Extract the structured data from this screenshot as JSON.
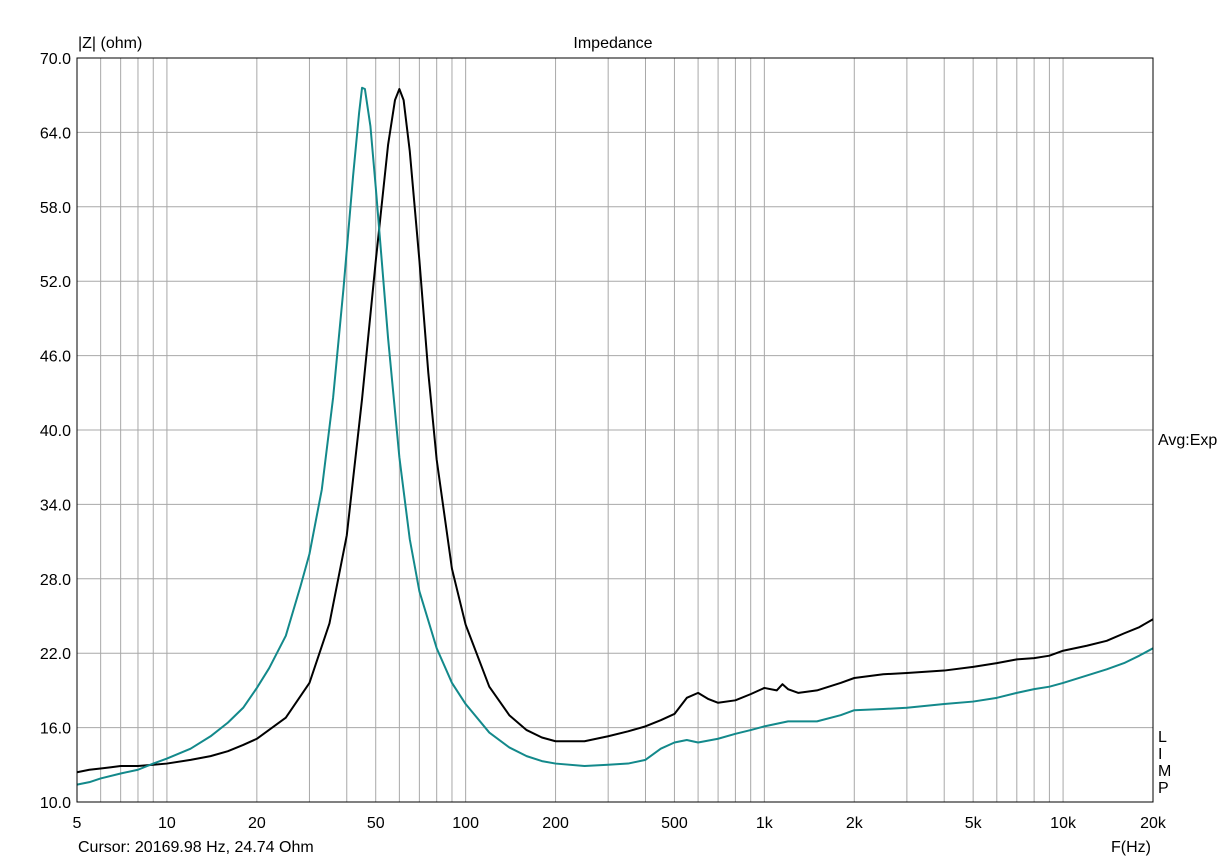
{
  "chart_data": {
    "type": "line",
    "title": "Impedance",
    "ylabel": "|Z| (ohm)",
    "xlabel": "F(Hz)",
    "x_scale": "log",
    "xlim": [
      5,
      20000
    ],
    "ylim": [
      10,
      70
    ],
    "grid": true,
    "y_ticks": [
      "70.0",
      "64.0",
      "58.0",
      "52.0",
      "46.0",
      "40.0",
      "34.0",
      "28.0",
      "22.0",
      "16.0",
      "10.0"
    ],
    "x_tick_labels": [
      {
        "value": 5,
        "label": "5"
      },
      {
        "value": 10,
        "label": "10"
      },
      {
        "value": 20,
        "label": "20"
      },
      {
        "value": 50,
        "label": "50"
      },
      {
        "value": 100,
        "label": "100"
      },
      {
        "value": 200,
        "label": "200"
      },
      {
        "value": 500,
        "label": "500"
      },
      {
        "value": 1000,
        "label": "1k"
      },
      {
        "value": 2000,
        "label": "2k"
      },
      {
        "value": 5000,
        "label": "5k"
      },
      {
        "value": 10000,
        "label": "10k"
      },
      {
        "value": 20000,
        "label": "20k"
      }
    ],
    "side_label": "Avg:Exp",
    "limp_letters": [
      "L",
      "I",
      "M",
      "P"
    ],
    "cursor_text": "Cursor: 20169.98 Hz, 24.74 Ohm",
    "series": [
      {
        "color": "#000000",
        "points": [
          [
            5,
            12.4
          ],
          [
            5.5,
            12.6
          ],
          [
            6,
            12.7
          ],
          [
            6.5,
            12.8
          ],
          [
            7,
            12.9
          ],
          [
            8,
            12.9
          ],
          [
            9,
            13.0
          ],
          [
            10,
            13.1
          ],
          [
            12,
            13.4
          ],
          [
            14,
            13.7
          ],
          [
            16,
            14.1
          ],
          [
            18,
            14.6
          ],
          [
            20,
            15.1
          ],
          [
            25,
            16.8
          ],
          [
            30,
            19.6
          ],
          [
            35,
            24.4
          ],
          [
            40,
            31.5
          ],
          [
            45,
            42.5
          ],
          [
            50,
            53.6
          ],
          [
            55,
            63.0
          ],
          [
            58,
            66.6
          ],
          [
            60,
            67.5
          ],
          [
            62,
            66.6
          ],
          [
            65,
            62.5
          ],
          [
            70,
            53.7
          ],
          [
            75,
            44.6
          ],
          [
            80,
            37.6
          ],
          [
            90,
            28.8
          ],
          [
            100,
            24.3
          ],
          [
            120,
            19.3
          ],
          [
            140,
            17.0
          ],
          [
            160,
            15.8
          ],
          [
            180,
            15.2
          ],
          [
            200,
            14.9
          ],
          [
            250,
            14.9
          ],
          [
            300,
            15.3
          ],
          [
            350,
            15.7
          ],
          [
            400,
            16.1
          ],
          [
            450,
            16.6
          ],
          [
            500,
            17.1
          ],
          [
            550,
            18.4
          ],
          [
            600,
            18.8
          ],
          [
            650,
            18.3
          ],
          [
            700,
            18.0
          ],
          [
            800,
            18.2
          ],
          [
            900,
            18.7
          ],
          [
            1000,
            19.2
          ],
          [
            1100,
            19.0
          ],
          [
            1150,
            19.5
          ],
          [
            1200,
            19.1
          ],
          [
            1300,
            18.8
          ],
          [
            1500,
            19.0
          ],
          [
            1800,
            19.6
          ],
          [
            2000,
            20.0
          ],
          [
            2500,
            20.3
          ],
          [
            3000,
            20.4
          ],
          [
            4000,
            20.6
          ],
          [
            5000,
            20.9
          ],
          [
            6000,
            21.2
          ],
          [
            7000,
            21.5
          ],
          [
            8000,
            21.6
          ],
          [
            9000,
            21.8
          ],
          [
            10000,
            22.2
          ],
          [
            12000,
            22.6
          ],
          [
            14000,
            23.0
          ],
          [
            16000,
            23.6
          ],
          [
            18000,
            24.1
          ],
          [
            20000,
            24.74
          ]
        ]
      },
      {
        "color": "#13898b",
        "points": [
          [
            5,
            11.4
          ],
          [
            5.5,
            11.6
          ],
          [
            6,
            11.9
          ],
          [
            7,
            12.3
          ],
          [
            8,
            12.6
          ],
          [
            9,
            13.1
          ],
          [
            10,
            13.5
          ],
          [
            12,
            14.3
          ],
          [
            14,
            15.3
          ],
          [
            16,
            16.4
          ],
          [
            18,
            17.6
          ],
          [
            20,
            19.2
          ],
          [
            22,
            20.8
          ],
          [
            25,
            23.4
          ],
          [
            28,
            27.4
          ],
          [
            30,
            30.0
          ],
          [
            33,
            35.2
          ],
          [
            36,
            42.6
          ],
          [
            39,
            51.4
          ],
          [
            42,
            60.5
          ],
          [
            44,
            65.6
          ],
          [
            45,
            67.6
          ],
          [
            46,
            67.5
          ],
          [
            48,
            64.5
          ],
          [
            50,
            59.6
          ],
          [
            55,
            47.4
          ],
          [
            60,
            37.8
          ],
          [
            65,
            31.2
          ],
          [
            70,
            27.0
          ],
          [
            80,
            22.4
          ],
          [
            90,
            19.6
          ],
          [
            100,
            17.9
          ],
          [
            120,
            15.6
          ],
          [
            140,
            14.4
          ],
          [
            160,
            13.7
          ],
          [
            180,
            13.3
          ],
          [
            200,
            13.1
          ],
          [
            250,
            12.9
          ],
          [
            300,
            13.0
          ],
          [
            350,
            13.1
          ],
          [
            400,
            13.4
          ],
          [
            450,
            14.3
          ],
          [
            500,
            14.8
          ],
          [
            550,
            15.0
          ],
          [
            600,
            14.8
          ],
          [
            700,
            15.1
          ],
          [
            800,
            15.5
          ],
          [
            900,
            15.8
          ],
          [
            1000,
            16.1
          ],
          [
            1200,
            16.5
          ],
          [
            1500,
            16.5
          ],
          [
            1800,
            17.0
          ],
          [
            2000,
            17.4
          ],
          [
            2500,
            17.5
          ],
          [
            3000,
            17.6
          ],
          [
            4000,
            17.9
          ],
          [
            5000,
            18.1
          ],
          [
            6000,
            18.4
          ],
          [
            7000,
            18.8
          ],
          [
            8000,
            19.1
          ],
          [
            9000,
            19.3
          ],
          [
            10000,
            19.6
          ],
          [
            12000,
            20.2
          ],
          [
            14000,
            20.7
          ],
          [
            16000,
            21.2
          ],
          [
            18000,
            21.8
          ],
          [
            20000,
            22.4
          ]
        ]
      }
    ]
  }
}
